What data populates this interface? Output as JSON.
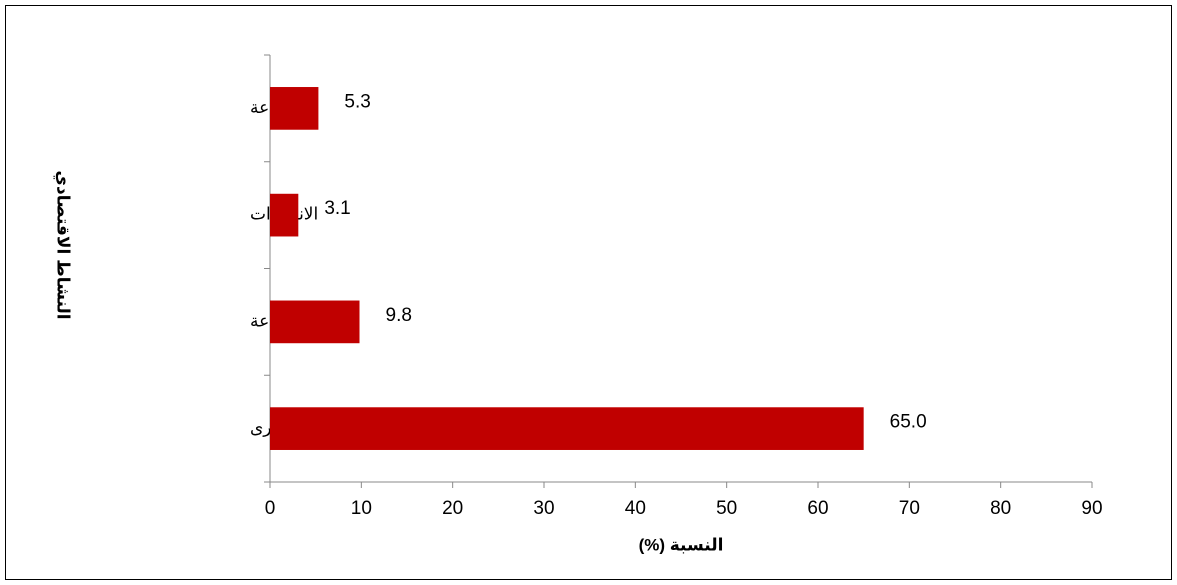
{
  "chart_data": {
    "type": "hbar",
    "x_label": "النسبة (%)",
    "y_label": "النشاط الاقتصادي",
    "categories": [
      "الزراعة",
      "الانشاءات",
      "الصناعة",
      "الخدمات والفروع الأخرى"
    ],
    "values": [
      5.3,
      3.1,
      9.8,
      65
    ],
    "value_labels": [
      "5.3",
      "3.1",
      "9.8",
      "65.0"
    ],
    "color": "#c00000",
    "xlim": [
      0,
      90
    ],
    "xticks": [
      0,
      10,
      20,
      30,
      40,
      50,
      60,
      70,
      80,
      90
    ],
    "grid": false
  }
}
